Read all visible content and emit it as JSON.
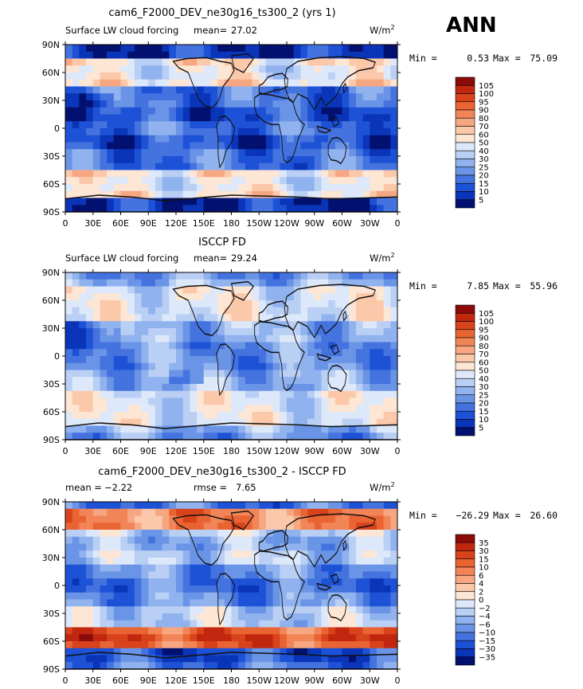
{
  "season": "ANN",
  "colors": {
    "ocean_base": "#2a66e8",
    "coast": "#111111"
  },
  "chart_data": [
    {
      "type": "heatmap",
      "title": "cam6_F2000_DEV_ne30g16_ts300_2 (yrs 1)",
      "subtitle": "Surface LW cloud forcing",
      "mean_label": "mean=",
      "mean": "27.02",
      "units": "W/m",
      "units_sup": "2",
      "min_label": "Min =",
      "min": "0.53",
      "max_label": "Max =",
      "max": "75.09",
      "y_ticks": [
        "90N",
        "60N",
        "30N",
        "0",
        "30S",
        "60S",
        "90S"
      ],
      "x_ticks": [
        "0",
        "30E",
        "60E",
        "90E",
        "120E",
        "150E",
        "180",
        "150W",
        "120W",
        "90W",
        "60W",
        "30W",
        "0"
      ],
      "colorbar_levels": [
        "105",
        "100",
        "95",
        "90",
        "80",
        "70",
        "60",
        "50",
        "40",
        "30",
        "25",
        "20",
        "15",
        "10",
        "5"
      ],
      "colorbar_colors": [
        "#8b0a0a",
        "#c1270f",
        "#d8431b",
        "#ea6433",
        "#f28558",
        "#f7a682",
        "#fbc8aa",
        "#fde6d4",
        "#dde8fb",
        "#b9cff4",
        "#90b2ee",
        "#6a94e6",
        "#4473df",
        "#1d52d6",
        "#0a35b8",
        "#02106f"
      ],
      "field_type": "cam"
    },
    {
      "type": "heatmap",
      "title": "ISCCP FD",
      "subtitle": "Surface LW cloud forcing",
      "mean_label": "mean=",
      "mean": "29.24",
      "units": "W/m",
      "units_sup": "2",
      "min_label": "Min =",
      "min": "7.85",
      "max_label": "Max =",
      "max": "55.96",
      "y_ticks": [
        "90N",
        "60N",
        "30N",
        "0",
        "30S",
        "60S",
        "90S"
      ],
      "x_ticks": [
        "0",
        "30E",
        "60E",
        "90E",
        "120E",
        "150E",
        "180",
        "150W",
        "120W",
        "90W",
        "60W",
        "30W",
        "0"
      ],
      "colorbar_levels": [
        "105",
        "100",
        "95",
        "90",
        "80",
        "70",
        "60",
        "50",
        "40",
        "30",
        "25",
        "20",
        "15",
        "10",
        "5"
      ],
      "colorbar_colors": [
        "#8b0a0a",
        "#c1270f",
        "#d8431b",
        "#ea6433",
        "#f28558",
        "#f7a682",
        "#fbc8aa",
        "#fde6d4",
        "#dde8fb",
        "#b9cff4",
        "#90b2ee",
        "#6a94e6",
        "#4473df",
        "#1d52d6",
        "#0a35b8",
        "#02106f"
      ],
      "field_type": "obs"
    },
    {
      "type": "heatmap",
      "title": "cam6_F2000_DEV_ne30g16_ts300_2 - ISCCP FD",
      "mean_label": "mean =",
      "mean": "−2.22",
      "rmse_label": "rmse =",
      "rmse": "7.65",
      "units": "W/m",
      "units_sup": "2",
      "min_label": "Min =",
      "min": "−26.29",
      "max_label": "Max =",
      "max": "26.60",
      "y_ticks": [
        "90N",
        "60N",
        "30N",
        "0",
        "30S",
        "60S",
        "90S"
      ],
      "x_ticks": [
        "0",
        "30E",
        "60E",
        "90E",
        "120E",
        "150E",
        "180",
        "150W",
        "120W",
        "90W",
        "60W",
        "30W",
        "0"
      ],
      "colorbar_levels": [
        "35",
        "30",
        "15",
        "10",
        "6",
        "4",
        "2",
        "0",
        "−2",
        "−4",
        "−6",
        "−10",
        "−15",
        "−30",
        "−35"
      ],
      "colorbar_colors": [
        "#8b0a0a",
        "#c1270f",
        "#d8431b",
        "#ea6433",
        "#f28558",
        "#f7a682",
        "#fbc8aa",
        "#fde6d4",
        "#dde8fb",
        "#b9cff4",
        "#90b2ee",
        "#6a94e6",
        "#4473df",
        "#1d52d6",
        "#0a35b8",
        "#02106f"
      ],
      "field_type": "diff"
    }
  ]
}
